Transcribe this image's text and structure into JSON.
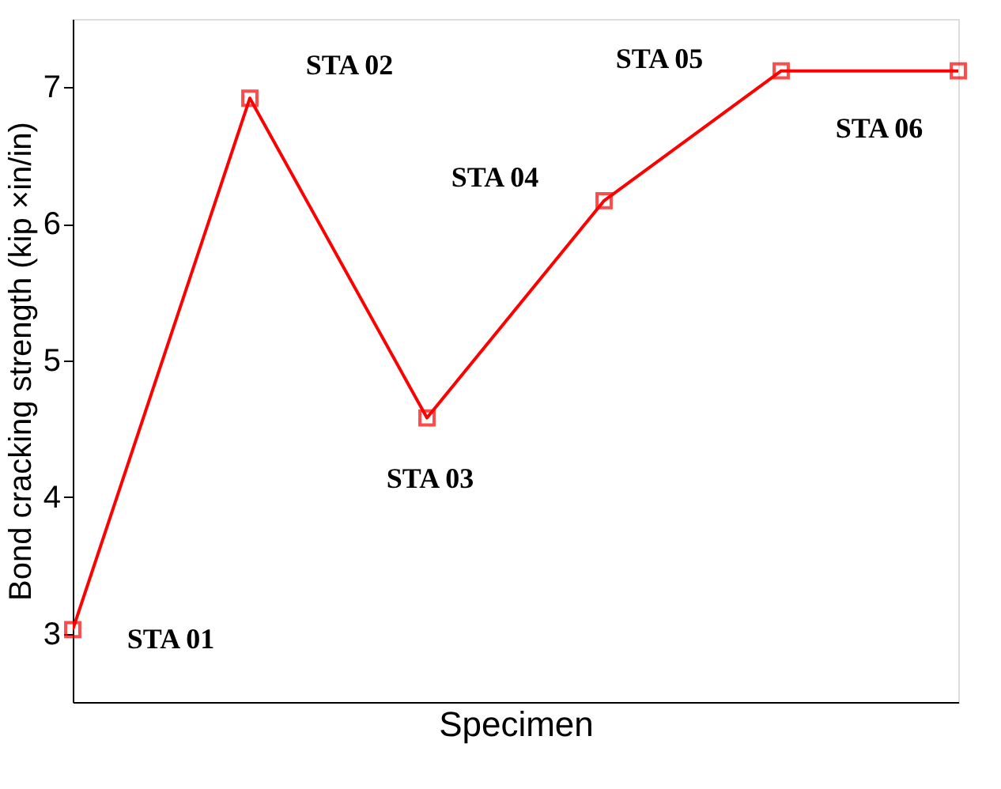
{
  "chart_data": {
    "type": "line",
    "xlabel": "Specimen",
    "ylabel": "Bond cracking strength (kip ×in/in)",
    "categories": [
      null,
      null,
      null,
      null,
      null,
      null
    ],
    "series": [
      {
        "color": "#ff0000",
        "values": [
          3.03,
          6.92,
          4.58,
          6.17,
          7.12,
          7.12
        ]
      }
    ],
    "ylim": [
      2.5,
      7.5
    ],
    "yticks": [
      3,
      4,
      5,
      6,
      7
    ],
    "grid": false,
    "marker": "square",
    "line_style": "solid",
    "annotations": [
      "STA 01",
      "STA 02",
      "STA 03",
      "STA 04",
      "STA 05",
      "STA 06"
    ]
  }
}
